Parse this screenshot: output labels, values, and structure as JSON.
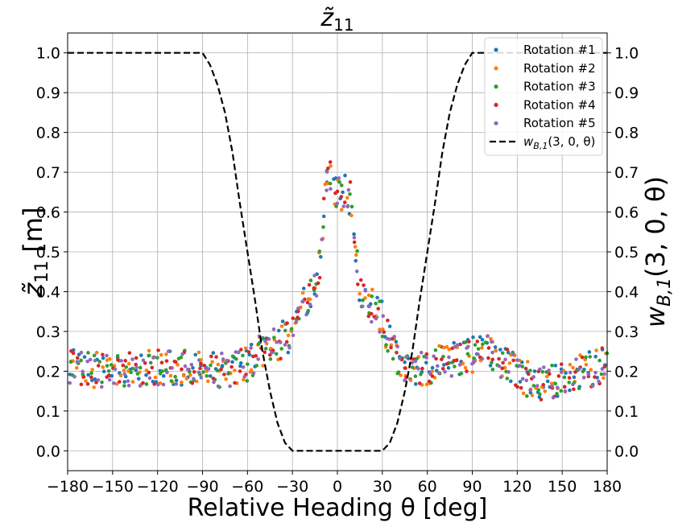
{
  "chart_data": {
    "type": "scatter",
    "title": "z̃",
    "title_sub": "11",
    "xlabel_main": "Relative Heading θ [deg]",
    "ylabel_left": "z̃",
    "ylabel_left_sub": "11",
    "ylabel_left_unit": " [m]",
    "ylabel_right": "w",
    "ylabel_right_sub": "B,1",
    "ylabel_right_args": "(3, 0, θ)",
    "xlim": [
      -180,
      180
    ],
    "ylim": [
      -0.05,
      1.05
    ],
    "x_ticks": [
      -180,
      -150,
      -120,
      -90,
      -60,
      -30,
      0,
      30,
      60,
      90,
      120,
      150,
      180
    ],
    "x_tick_labels": [
      "−180",
      "−150",
      "−120",
      "−90",
      "−60",
      "−30",
      "0",
      "30",
      "60",
      "90",
      "120",
      "150",
      "180"
    ],
    "y_ticks": [
      0.0,
      0.1,
      0.2,
      0.3,
      0.4,
      0.5,
      0.6,
      0.7,
      0.8,
      0.9,
      1.0
    ],
    "y_tick_labels": [
      "0.0",
      "0.1",
      "0.2",
      "0.3",
      "0.4",
      "0.5",
      "0.6",
      "0.7",
      "0.8",
      "0.9",
      "1.0"
    ],
    "grid": true,
    "legend_position": "top-right",
    "series": [
      {
        "name": "Rotation #1",
        "color": "#1f77b4"
      },
      {
        "name": "Rotation #2",
        "color": "#ff7f0e"
      },
      {
        "name": "Rotation #3",
        "color": "#2ca02c"
      },
      {
        "name": "Rotation #4",
        "color": "#d62728"
      },
      {
        "name": "Rotation #5",
        "color": "#9467bd"
      }
    ],
    "profile_x": [
      -180,
      -150,
      -120,
      -90,
      -75,
      -60,
      -50,
      -40,
      -30,
      -25,
      -20,
      -15,
      -12,
      -10,
      -8,
      -5,
      -2,
      0,
      3,
      6,
      9,
      12,
      15,
      20,
      25,
      30,
      35,
      40,
      45,
      50,
      60,
      75,
      90,
      100,
      110,
      120,
      130,
      150,
      180
    ],
    "profile_y": [
      0.21,
      0.2,
      0.21,
      0.21,
      0.2,
      0.22,
      0.25,
      0.27,
      0.3,
      0.36,
      0.38,
      0.4,
      0.46,
      0.55,
      0.66,
      0.69,
      0.66,
      0.65,
      0.65,
      0.66,
      0.63,
      0.52,
      0.4,
      0.38,
      0.36,
      0.33,
      0.27,
      0.24,
      0.22,
      0.21,
      0.21,
      0.23,
      0.24,
      0.26,
      0.22,
      0.2,
      0.17,
      0.18,
      0.22
    ],
    "curve": {
      "name": "w_{B,1}(3, 0, θ)",
      "legend_main": "w",
      "legend_sub": "B,1",
      "legend_args": "(3, 0, θ)",
      "color": "#000000",
      "style": "dashed",
      "x": [
        -180,
        -90,
        -85,
        -80,
        -75,
        -70,
        -65,
        -60,
        -55,
        -50,
        -45,
        -40,
        -35,
        -30,
        30,
        35,
        40,
        45,
        50,
        55,
        60,
        65,
        70,
        75,
        80,
        85,
        90,
        180
      ],
      "y": [
        1.0,
        1.0,
        0.97,
        0.92,
        0.85,
        0.75,
        0.62,
        0.5,
        0.38,
        0.25,
        0.15,
        0.07,
        0.02,
        0.0,
        0.0,
        0.02,
        0.07,
        0.15,
        0.25,
        0.38,
        0.5,
        0.62,
        0.75,
        0.85,
        0.92,
        0.97,
        1.0,
        1.0
      ]
    }
  }
}
